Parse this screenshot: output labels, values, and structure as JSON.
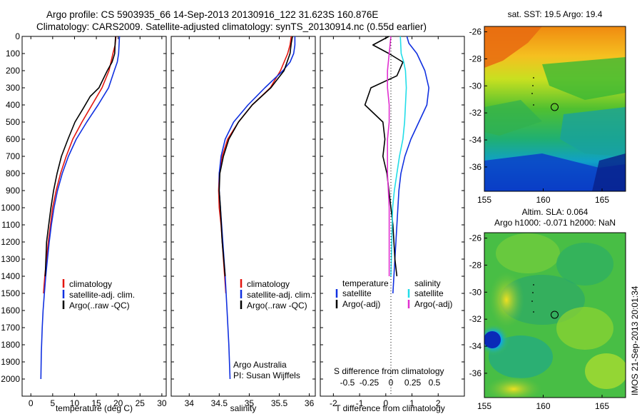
{
  "header": {
    "line1": "Argo profile: CS 5903935_66 14-Sep-2013 20130916_122 31.623S 160.876E",
    "line2": "Climatology: CARS2009. Satellite-adjusted climatology: synTS_20130914.nc (0.55d earlier)"
  },
  "colors": {
    "climatology": "#e3150e",
    "satellite": "#1030e0",
    "argo": "#000000",
    "salinity_satellite": "#22dde8",
    "salinity_argo": "#e030d0"
  },
  "panel_temperature": {
    "xlabel": "temperature (deg C)",
    "legend": [
      "climatology",
      "satellite-adj. clim.",
      "Argo(..raw -QC)"
    ]
  },
  "panel_salinity": {
    "xlabel": "salinity",
    "legend": [
      "climatology",
      "satellite-adj. clim.",
      "Argo(..raw -QC)"
    ],
    "credit1": "Argo Australia",
    "credit2": "PI: Susan Wijffels"
  },
  "panel_difference": {
    "legend_temperature_title": "temperature",
    "legend_salinity_title": "salinity",
    "legend_satellite": "satellite",
    "legend_argo": "Argo(-adj)",
    "top_label": "S difference from climatology",
    "xlabel": "T difference from climatology"
  },
  "map_sst": {
    "title": "sat. SST: 19.5 Argo: 19.4"
  },
  "map_sla": {
    "title1": "Altim. SLA: 0.064",
    "title2": "Argo h1000: -0.071 h2000: NaN"
  },
  "side_stamp": "IMOS 21-Sep-2013 20:01:34",
  "chart_data": [
    {
      "type": "line",
      "panel": "temperature",
      "xlabel": "temperature (deg C)",
      "ylabel": "",
      "xlim": [
        -2,
        31
      ],
      "ylim": [
        2100,
        0
      ],
      "xticks": [
        0,
        5,
        10,
        15,
        20,
        25,
        30
      ],
      "yticks": [
        0,
        100,
        200,
        300,
        400,
        500,
        600,
        700,
        800,
        900,
        1000,
        1100,
        1200,
        1300,
        1400,
        1500,
        1600,
        1700,
        1800,
        1900,
        2000
      ],
      "series": [
        {
          "name": "climatology",
          "x": [
            19.5,
            19.3,
            18.8,
            17.9,
            16.3,
            14.0,
            11.7,
            9.6,
            8.1,
            6.8,
            5.8,
            5.0,
            4.5,
            4.0,
            3.6,
            3.2,
            2.9
          ],
          "y": [
            0,
            50,
            100,
            200,
            300,
            400,
            500,
            600,
            700,
            800,
            900,
            1000,
            1100,
            1200,
            1300,
            1400,
            1500
          ]
        },
        {
          "name": "satellite-adj. clim.",
          "x": [
            20.3,
            20.2,
            20.1,
            19.8,
            19.1,
            17.8,
            15.4,
            12.8,
            10.4,
            8.6,
            7.2,
            6.1,
            5.3,
            4.7,
            4.2,
            3.8,
            3.4,
            3.1,
            2.8,
            2.6,
            2.4,
            2.3
          ],
          "y": [
            0,
            50,
            100,
            150,
            200,
            300,
            400,
            500,
            600,
            700,
            800,
            900,
            1000,
            1100,
            1200,
            1300,
            1400,
            1500,
            1600,
            1700,
            1850,
            2000
          ]
        },
        {
          "name": "Argo(..raw -QC)",
          "x": [
            19.4,
            19.3,
            19.2,
            18.6,
            17.5,
            15.6,
            13.6,
            12.0,
            10.1,
            8.5,
            7.0,
            6.0,
            5.2,
            4.6,
            4.1,
            3.6,
            3.3
          ],
          "y": [
            0,
            40,
            100,
            150,
            200,
            300,
            350,
            420,
            500,
            600,
            700,
            800,
            900,
            1000,
            1100,
            1200,
            1400
          ]
        }
      ]
    },
    {
      "type": "line",
      "panel": "salinity",
      "xlabel": "salinity",
      "ylabel": "",
      "xlim": [
        33.7,
        36.1
      ],
      "ylim": [
        2100,
        0
      ],
      "xticks": [
        34,
        34.5,
        35,
        35.5,
        36
      ],
      "series": [
        {
          "name": "climatology",
          "x": [
            35.7,
            35.68,
            35.64,
            35.52,
            35.35,
            35.05,
            34.82,
            34.64,
            34.55,
            34.5,
            34.49,
            34.5,
            34.53,
            34.57,
            34.61
          ],
          "y": [
            0,
            50,
            100,
            200,
            300,
            400,
            500,
            600,
            700,
            800,
            900,
            1000,
            1100,
            1300,
            1500
          ]
        },
        {
          "name": "satellite-adj. clim.",
          "x": [
            35.76,
            35.76,
            35.74,
            35.68,
            35.56,
            35.26,
            34.98,
            34.74,
            34.6,
            34.53,
            34.5,
            34.5,
            34.52,
            34.56,
            34.6,
            34.63,
            34.66,
            34.68
          ],
          "y": [
            0,
            50,
            100,
            150,
            200,
            300,
            400,
            500,
            600,
            700,
            800,
            900,
            1000,
            1200,
            1400,
            1600,
            1800,
            2000
          ]
        },
        {
          "name": "Argo(..raw -QC)",
          "x": [
            35.72,
            35.7,
            35.68,
            35.58,
            35.36,
            35.05,
            34.82,
            34.66,
            34.57,
            34.51,
            34.5,
            34.52,
            34.55,
            34.6
          ],
          "y": [
            0,
            40,
            100,
            200,
            300,
            400,
            500,
            600,
            700,
            800,
            900,
            1000,
            1200,
            1400
          ]
        }
      ]
    },
    {
      "type": "line",
      "panel": "difference",
      "xlabel": "T difference from climatology",
      "top_xlabel": "S difference from climatology",
      "xlim": [
        -2.5,
        3.0
      ],
      "ylim": [
        2100,
        0
      ],
      "xticks": [
        -2,
        -1,
        0,
        1,
        2
      ],
      "top_xticks": [
        -0.5,
        -0.25,
        0,
        0.25,
        0.5
      ],
      "series": [
        {
          "name": "temperature satellite",
          "x": [
            0.8,
            0.9,
            1.3,
            1.7,
            1.9,
            1.8,
            1.4,
            1.0,
            0.7,
            0.5,
            0.4,
            0.35,
            0.3,
            0.25,
            0.2,
            0.15,
            0.1
          ],
          "y": [
            0,
            40,
            100,
            200,
            300,
            400,
            500,
            600,
            700,
            800,
            900,
            1000,
            1100,
            1200,
            1300,
            1400,
            1500
          ]
        },
        {
          "name": "temperature Argo(-adj)",
          "x": [
            -0.1,
            -0.9,
            -0.1,
            0.6,
            0.3,
            -1.0,
            -1.3,
            -0.4,
            -0.3,
            -0.4,
            -0.2,
            -0.1,
            0.0,
            0.1,
            0.15,
            0.2,
            0.3
          ],
          "y": [
            0,
            50,
            100,
            150,
            230,
            300,
            400,
            500,
            600,
            700,
            800,
            900,
            1000,
            1100,
            1200,
            1300,
            1400
          ]
        },
        {
          "name": "salinity satellite",
          "x": [
            0.55,
            0.6,
            0.75,
            0.85,
            0.9,
            0.85,
            0.8,
            0.7,
            0.5,
            0.35,
            0.2,
            0.1,
            0.05,
            0.0
          ],
          "y": [
            0,
            100,
            150,
            200,
            300,
            400,
            500,
            600,
            700,
            800,
            900,
            1000,
            1200,
            1400
          ]
        },
        {
          "name": "salinity Argo(-adj)",
          "x": [
            0.0,
            -0.1,
            -0.2,
            -0.2,
            -0.1,
            -0.1,
            -0.2,
            -0.2,
            -0.2,
            -0.15,
            -0.1,
            -0.1,
            -0.1,
            -0.1
          ],
          "y": [
            0,
            100,
            200,
            300,
            400,
            500,
            600,
            700,
            800,
            900,
            1000,
            1100,
            1200,
            1400
          ]
        }
      ]
    },
    {
      "type": "heatmap",
      "panel": "sat. SST",
      "xlim": [
        155,
        167
      ],
      "ylim": [
        -37.8,
        -25.6
      ],
      "xticks": [
        155,
        160,
        165
      ],
      "yticks": [
        -26,
        -28,
        -30,
        -32,
        -34,
        -36
      ],
      "argo_position": [
        160.876,
        -31.623
      ]
    },
    {
      "type": "heatmap",
      "panel": "Altim. SLA",
      "xlim": [
        155,
        167
      ],
      "ylim": [
        -37.8,
        -25.6
      ],
      "xticks": [
        155,
        160,
        165
      ],
      "yticks": [
        -26,
        -28,
        -30,
        -32,
        -34,
        -36
      ],
      "argo_position": [
        160.876,
        -31.623
      ]
    }
  ]
}
